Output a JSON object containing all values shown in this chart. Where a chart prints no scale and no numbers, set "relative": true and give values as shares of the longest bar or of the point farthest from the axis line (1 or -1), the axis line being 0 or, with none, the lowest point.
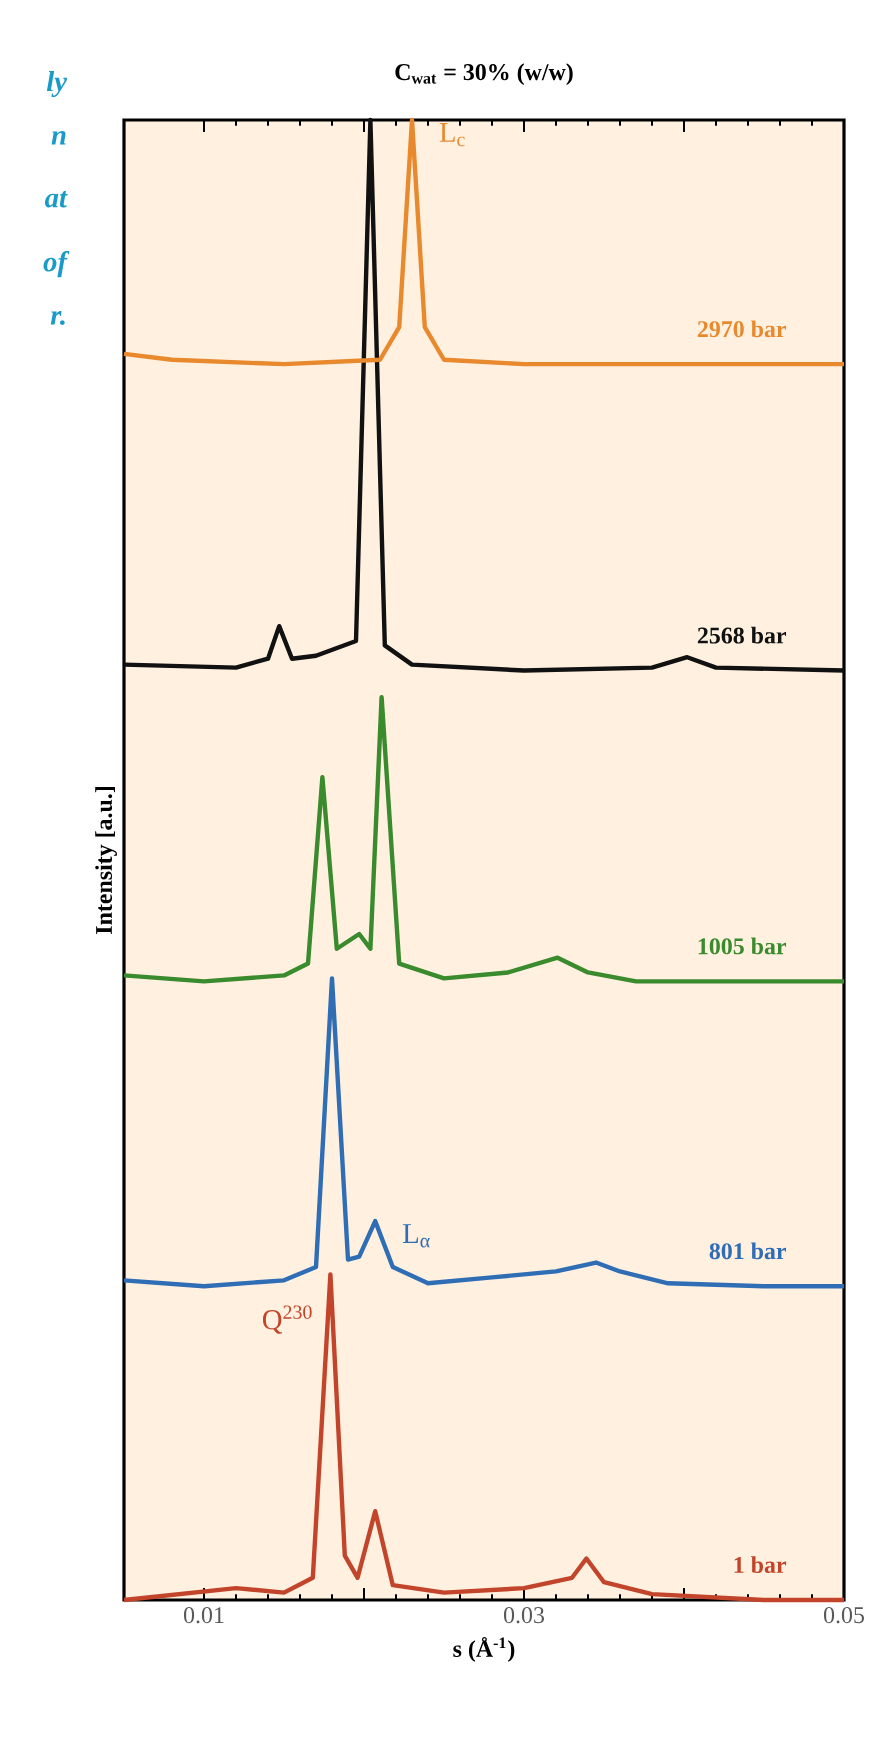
{
  "chart_data": {
    "type": "line",
    "title": "C$_{wat}$ = 30% (w/w)",
    "xlabel": "s (Å$^{-1}$)",
    "ylabel": "Intensity [a.u.]",
    "relative": true,
    "tick_labels": "x",
    "xlim": [
      0.005,
      0.05
    ],
    "xticks": [
      0.01,
      {
        "value": 0.02,
        "label": null
      },
      0.03,
      {
        "value": 0.04,
        "label": null
      },
      0.05
    ],
    "series": [
      {
        "name": "1 bar",
        "color": "#c2452b",
        "x": [
          0.005,
          0.012,
          0.015,
          0.0168,
          0.0179,
          0.0188,
          0.0196,
          0.0207,
          0.0218,
          0.025,
          0.03,
          0.033,
          0.0339,
          0.035,
          0.038,
          0.045,
          0.05
        ],
        "values": [
          0.0,
          0.008,
          0.005,
          0.015,
          0.22,
          0.03,
          0.015,
          0.06,
          0.01,
          0.005,
          0.008,
          0.015,
          0.028,
          0.012,
          0.004,
          0.0,
          0.0
        ]
      },
      {
        "name": "801 bar",
        "color": "#2f6db5",
        "x": [
          0.005,
          0.01,
          0.015,
          0.017,
          0.018,
          0.019,
          0.0197,
          0.0207,
          0.0218,
          0.024,
          0.028,
          0.032,
          0.0345,
          0.036,
          0.039,
          0.045,
          0.05
        ],
        "values": [
          0.216,
          0.212,
          0.216,
          0.225,
          0.42,
          0.23,
          0.232,
          0.256,
          0.225,
          0.214,
          0.218,
          0.222,
          0.228,
          0.222,
          0.214,
          0.212,
          0.212
        ]
      },
      {
        "name": "1005 bar",
        "color": "#3a8a2e",
        "x": [
          0.005,
          0.01,
          0.015,
          0.0165,
          0.0174,
          0.0183,
          0.0197,
          0.0204,
          0.0211,
          0.0222,
          0.025,
          0.029,
          0.0321,
          0.034,
          0.037,
          0.045,
          0.05
        ],
        "values": [
          0.422,
          0.418,
          0.422,
          0.43,
          0.556,
          0.44,
          0.45,
          0.44,
          0.61,
          0.43,
          0.42,
          0.424,
          0.434,
          0.424,
          0.418,
          0.418,
          0.418
        ]
      },
      {
        "name": "2568 bar",
        "color": "#111111",
        "x": [
          0.005,
          0.012,
          0.014,
          0.0147,
          0.0155,
          0.017,
          0.0195,
          0.0204,
          0.0213,
          0.023,
          0.03,
          0.038,
          0.0402,
          0.042,
          0.05
        ],
        "values": [
          0.632,
          0.63,
          0.636,
          0.658,
          0.636,
          0.638,
          0.648,
          1.0,
          0.645,
          0.632,
          0.628,
          0.63,
          0.637,
          0.63,
          0.628
        ]
      },
      {
        "name": "2970 bar",
        "color": "#e8892e",
        "x": [
          0.005,
          0.008,
          0.015,
          0.021,
          0.0222,
          0.023,
          0.0238,
          0.025,
          0.03,
          0.05
        ],
        "values": [
          0.842,
          0.838,
          0.835,
          0.838,
          0.86,
          1.0,
          0.86,
          0.838,
          0.835,
          0.835
        ]
      }
    ],
    "annotations": [
      {
        "text": "L$_{c}$",
        "x": 0.023,
        "y": 1.0
      },
      {
        "text": "L$_{α}$",
        "x": 0.0207,
        "y": 0.256
      },
      {
        "text": "Q$^{230}$",
        "x": 0.0179,
        "y": 0.22
      },
      "ly",
      "n",
      "at",
      "of",
      "r."
    ]
  }
}
